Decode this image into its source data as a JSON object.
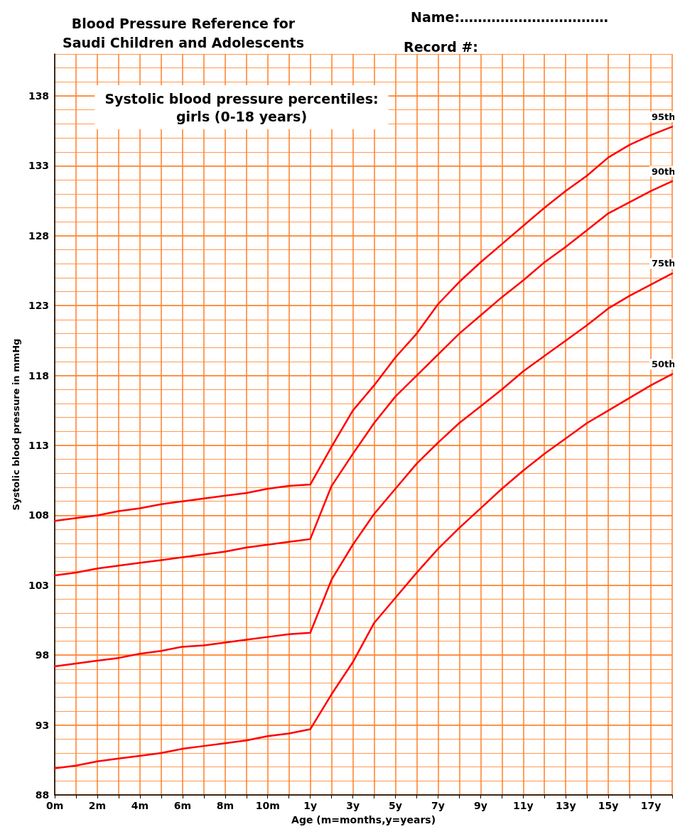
{
  "chart_data": {
    "type": "line",
    "title": "Blood Pressure Reference for\nSaudi Children and Adolescents",
    "subtitle": "Systolic blood pressure percentiles:\ngirls (0-18 years)",
    "xlabel": "Age (m=months,y=years)",
    "ylabel": "Systolic blood pressure in mmHg",
    "annotations": [
      "Name:……………………………",
      "Record #:"
    ],
    "categories": [
      "0m",
      null,
      "2m",
      null,
      "4m",
      null,
      "6m",
      null,
      "8m",
      null,
      "10m",
      null,
      "1y",
      null,
      "3y",
      null,
      "5y",
      null,
      "7y",
      null,
      "9y",
      null,
      "11y",
      null,
      "13y",
      null,
      "15y",
      null,
      "17y",
      null
    ],
    "series": [
      {
        "name": "95th",
        "color": "#ff0000",
        "values": [
          107.6,
          107.8,
          108.0,
          108.3,
          108.5,
          108.8,
          109.0,
          109.2,
          109.4,
          109.6,
          109.9,
          110.1,
          110.2,
          112.9,
          115.5,
          117.3,
          119.3,
          121.0,
          123.1,
          124.7,
          126.1,
          127.4,
          128.7,
          130.0,
          131.2,
          132.3,
          133.6,
          134.5,
          135.2,
          135.8
        ]
      },
      {
        "name": "90th",
        "color": "#ff0000",
        "values": [
          103.7,
          103.9,
          104.2,
          104.4,
          104.6,
          104.8,
          105.0,
          105.2,
          105.4,
          105.7,
          105.9,
          106.1,
          106.3,
          110.1,
          112.4,
          114.6,
          116.5,
          118.0,
          119.5,
          121.0,
          122.3,
          123.6,
          124.8,
          126.1,
          127.2,
          128.4,
          129.6,
          130.4,
          131.2,
          131.9
        ]
      },
      {
        "name": "75th",
        "color": "#ff0000",
        "values": [
          97.2,
          97.4,
          97.6,
          97.8,
          98.1,
          98.3,
          98.6,
          98.7,
          98.9,
          99.1,
          99.3,
          99.5,
          99.6,
          103.4,
          105.9,
          108.1,
          109.9,
          111.7,
          113.2,
          114.6,
          115.8,
          117.0,
          118.3,
          119.4,
          120.5,
          121.6,
          122.8,
          123.7,
          124.5,
          125.3
        ]
      },
      {
        "name": "50th",
        "color": "#ff0000",
        "values": [
          89.9,
          90.1,
          90.4,
          90.6,
          90.8,
          91.0,
          91.3,
          91.5,
          91.7,
          91.9,
          92.2,
          92.4,
          92.7,
          95.2,
          97.5,
          100.3,
          102.1,
          103.9,
          105.6,
          107.1,
          108.5,
          109.9,
          111.2,
          112.4,
          113.5,
          114.6,
          115.5,
          116.4,
          117.3,
          118.1
        ]
      }
    ],
    "ylim": [
      88,
      141
    ],
    "yticks": [
      88,
      93,
      98,
      103,
      108,
      113,
      118,
      123,
      128,
      133,
      138
    ],
    "grid": true,
    "marker": "none",
    "line_style": "solid",
    "legend": false
  }
}
